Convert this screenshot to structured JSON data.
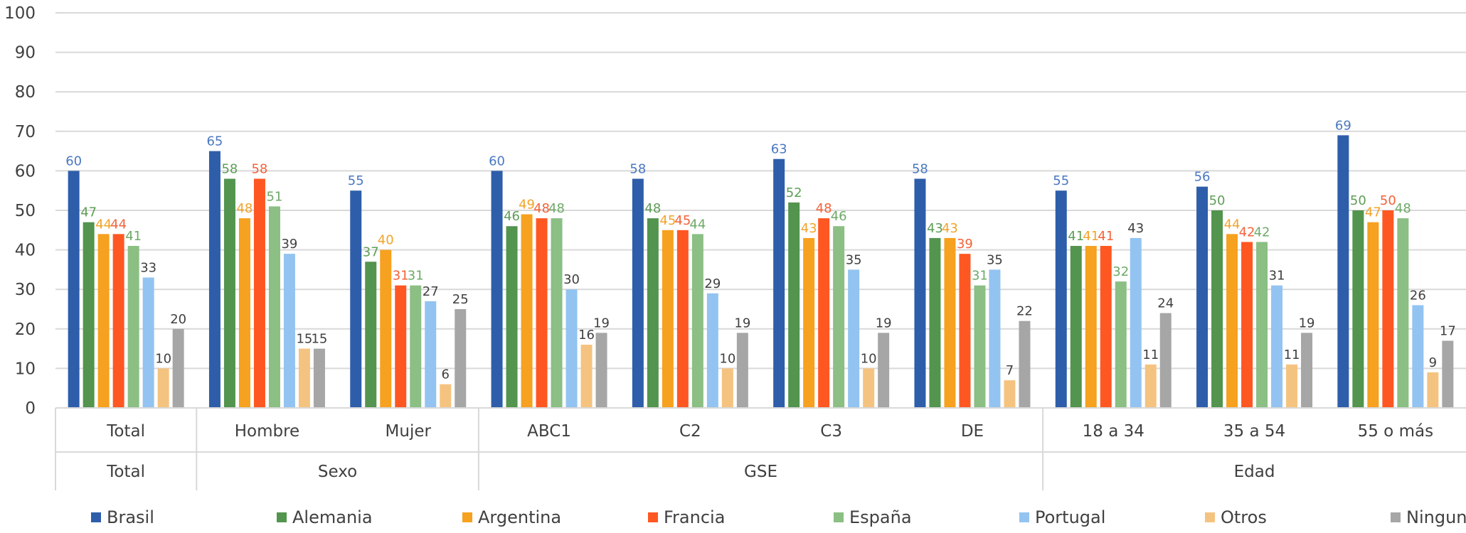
{
  "chart_data": {
    "type": "bar",
    "ylim": [
      0,
      100
    ],
    "yticks": [
      0,
      10,
      20,
      30,
      40,
      50,
      60,
      70,
      80,
      90,
      100
    ],
    "grid": true,
    "legend_position": "bottom",
    "categories": [
      "Total",
      "Hombre",
      "Mujer",
      "ABC1",
      "C2",
      "C3",
      "DE",
      "18 a 34",
      "35 a 54",
      "55 o más"
    ],
    "groups": [
      {
        "label": "Total",
        "categories": [
          "Total"
        ]
      },
      {
        "label": "Sexo",
        "categories": [
          "Hombre",
          "Mujer"
        ]
      },
      {
        "label": "GSE",
        "categories": [
          "ABC1",
          "C2",
          "C3",
          "DE"
        ]
      },
      {
        "label": "Edad",
        "categories": [
          "18 a 34",
          "35 a 54",
          "55 o más"
        ]
      }
    ],
    "series": [
      {
        "name": "Brasil",
        "color": "#2E5EAA",
        "label_color": "#4A78C0",
        "values": [
          60,
          65,
          55,
          60,
          58,
          63,
          58,
          55,
          56,
          69
        ]
      },
      {
        "name": "Alemania",
        "color": "#53944E",
        "label_color": "#5E9E57",
        "values": [
          47,
          58,
          37,
          46,
          48,
          52,
          43,
          41,
          50,
          50
        ]
      },
      {
        "name": "Argentina",
        "color": "#F6A11F",
        "label_color": "#F2A32A",
        "values": [
          44,
          48,
          40,
          49,
          45,
          43,
          43,
          41,
          44,
          47
        ]
      },
      {
        "name": "Francia",
        "color": "#FF5722",
        "label_color": "#F4623A",
        "values": [
          44,
          58,
          31,
          48,
          45,
          48,
          39,
          41,
          42,
          50
        ]
      },
      {
        "name": "España",
        "color": "#8BBF84",
        "label_color": "#6EAA68",
        "values": [
          41,
          51,
          31,
          48,
          44,
          46,
          31,
          32,
          42,
          48
        ]
      },
      {
        "name": "Portugal",
        "color": "#93C3F1",
        "label_color": "#404040",
        "values": [
          33,
          39,
          27,
          30,
          29,
          35,
          35,
          43,
          31,
          26
        ]
      },
      {
        "name": "Otros",
        "color": "#F5C380",
        "label_color": "#404040",
        "values": [
          10,
          15,
          6,
          16,
          10,
          10,
          7,
          11,
          11,
          9
        ]
      },
      {
        "name": "Ninguno",
        "color": "#A6A6A6",
        "label_color": "#404040",
        "values": [
          20,
          15,
          25,
          19,
          19,
          19,
          22,
          24,
          19,
          17
        ]
      }
    ]
  }
}
